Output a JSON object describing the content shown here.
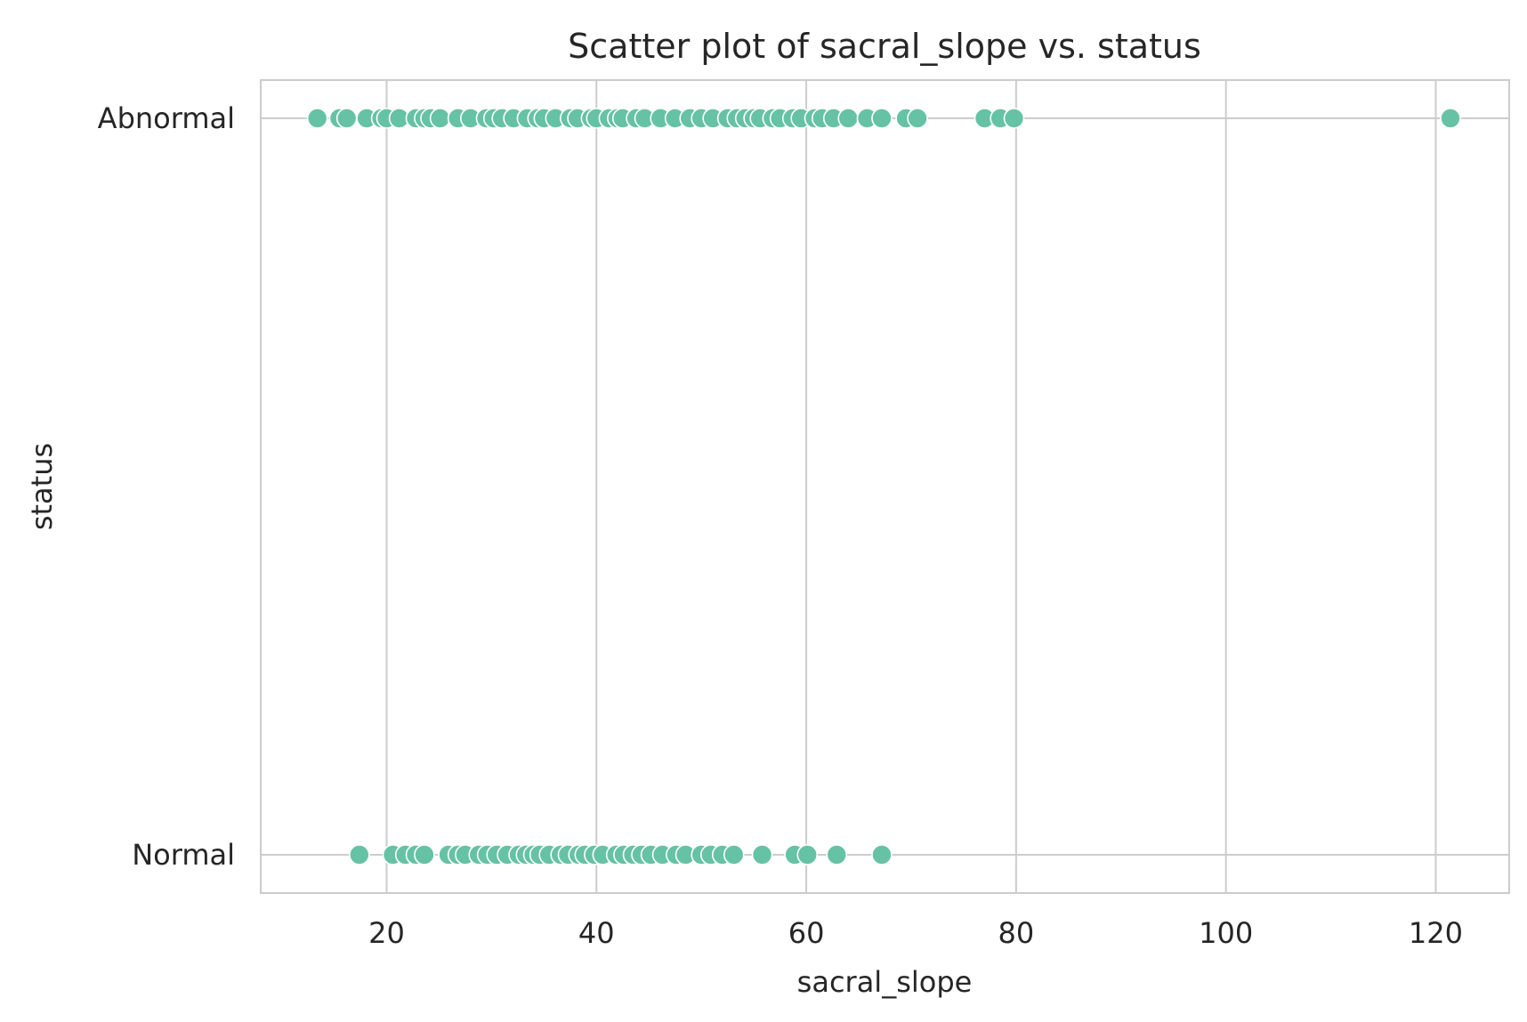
{
  "chart_data": {
    "type": "scatter",
    "title": "Scatter plot of sacral_slope vs. status",
    "xlabel": "sacral_slope",
    "ylabel": "status",
    "xlim": [
      8,
      127
    ],
    "x_ticks": [
      20,
      40,
      60,
      80,
      100,
      120
    ],
    "categories": [
      "Abnormal",
      "Normal"
    ],
    "grid": true,
    "point_color": "#66c2a5",
    "series": [
      {
        "category": "Abnormal",
        "x": [
          13.4,
          15.5,
          16.2,
          18.1,
          19.5,
          20.0,
          21.2,
          22.8,
          23.6,
          24.2,
          25.1,
          26.8,
          28.0,
          29.5,
          30.2,
          31.0,
          32.1,
          33.4,
          34.4,
          35.0,
          36.1,
          37.5,
          38.2,
          39.5,
          40.0,
          41.2,
          42.0,
          42.5,
          43.8,
          44.6,
          46.1,
          47.5,
          48.9,
          50.0,
          51.1,
          52.5,
          53.4,
          54.2,
          55.0,
          55.6,
          56.8,
          57.5,
          58.7,
          59.5,
          60.8,
          61.5,
          62.6,
          64.0,
          65.8,
          67.2,
          69.5,
          70.6,
          77.0,
          78.5,
          79.8,
          121.4
        ]
      },
      {
        "category": "Normal",
        "x": [
          17.4,
          20.6,
          21.8,
          22.8,
          23.6,
          25.9,
          26.8,
          27.5,
          28.8,
          29.6,
          30.5,
          31.5,
          32.6,
          33.3,
          34.0,
          34.6,
          35.5,
          36.6,
          37.3,
          38.3,
          38.9,
          39.8,
          40.6,
          41.9,
          42.6,
          43.5,
          44.3,
          45.2,
          46.3,
          47.6,
          48.5,
          50.0,
          50.9,
          52.0,
          53.1,
          55.8,
          58.9,
          60.1,
          62.9,
          67.2
        ]
      }
    ]
  }
}
